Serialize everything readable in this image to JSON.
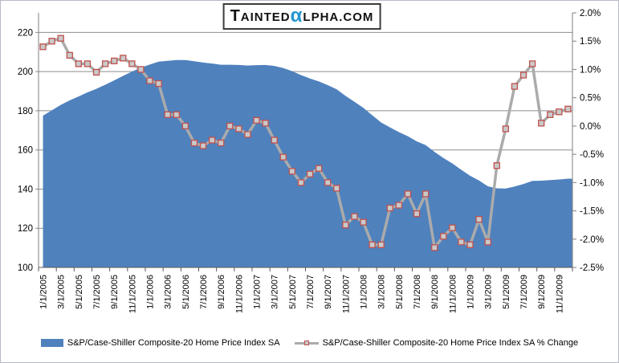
{
  "brand": {
    "t": "T",
    "ainted": "AINTED",
    "alpha": "α",
    "lpha_com": "LPHA.COM",
    "alpha_color": "#2496D2"
  },
  "legend": [
    {
      "label": "S&P/Case-Shiller Composite-20 Home Price Index SA",
      "type": "area",
      "color": "#4F81BD"
    },
    {
      "label": "S&P/Case-Shiller Composite-20 Home Price Index SA % Change",
      "type": "line-marker",
      "line_color": "#ABABAB",
      "marker_fill": "#C9C9C9",
      "marker_border": "#C0504D"
    }
  ],
  "chart_data": {
    "type": "area+line combo (dual axis)",
    "x": [
      "1/1/2005",
      "2/1/2005",
      "3/1/2005",
      "4/1/2005",
      "5/1/2005",
      "6/1/2005",
      "7/1/2005",
      "8/1/2005",
      "9/1/2005",
      "10/1/2005",
      "11/1/2005",
      "12/1/2005",
      "1/1/2006",
      "2/1/2006",
      "3/1/2006",
      "4/1/2006",
      "5/1/2006",
      "6/1/2006",
      "7/1/2006",
      "8/1/2006",
      "9/1/2006",
      "10/1/2006",
      "11/1/2006",
      "12/1/2006",
      "1/1/2007",
      "2/1/2007",
      "3/1/2007",
      "4/1/2007",
      "5/1/2007",
      "6/1/2007",
      "7/1/2007",
      "8/1/2007",
      "9/1/2007",
      "10/1/2007",
      "11/1/2007",
      "12/1/2007",
      "1/1/2008",
      "2/1/2008",
      "3/1/2008",
      "4/1/2008",
      "5/1/2008",
      "6/1/2008",
      "7/1/2008",
      "8/1/2008",
      "9/1/2008",
      "10/1/2008",
      "11/1/2008",
      "12/1/2008",
      "1/1/2009",
      "2/1/2009",
      "3/1/2009",
      "4/1/2009",
      "5/1/2009",
      "6/1/2009",
      "7/1/2009",
      "8/1/2009",
      "9/1/2009",
      "10/1/2009",
      "11/1/2009",
      "12/1/2009"
    ],
    "x_label_every": 2,
    "series": [
      {
        "name": "S&P/Case-Shiller Composite-20 Home Price Index SA",
        "type": "area",
        "axis": "left",
        "color": "#4F81BD",
        "values": [
          177.5,
          180.2,
          183.0,
          185.3,
          187.3,
          189.4,
          191.2,
          193.3,
          195.5,
          197.8,
          200.0,
          202.0,
          203.6,
          205.1,
          205.5,
          205.9,
          205.9,
          205.3,
          204.6,
          204.1,
          203.5,
          203.5,
          203.4,
          203.1,
          203.3,
          203.4,
          202.9,
          201.8,
          200.2,
          198.2,
          196.5,
          195.0,
          193.1,
          191.0,
          187.6,
          184.6,
          181.5,
          177.7,
          174.0,
          171.5,
          169.1,
          167.0,
          164.4,
          162.5,
          159.0,
          155.9,
          153.1,
          149.9,
          146.8,
          144.4,
          141.4,
          140.4,
          140.3,
          141.3,
          142.6,
          144.2,
          144.3,
          144.6,
          144.9,
          145.3
        ]
      },
      {
        "name": "S&P/Case-Shiller Composite-20 Home Price Index SA % Change",
        "type": "line",
        "axis": "right",
        "line_color": "#ABABAB",
        "marker_fill": "#C9C9C9",
        "marker_border": "#C0504D",
        "values": [
          1.4,
          1.5,
          1.55,
          1.25,
          1.1,
          1.1,
          0.95,
          1.1,
          1.15,
          1.2,
          1.1,
          1.0,
          0.8,
          0.75,
          0.2,
          0.2,
          0.0,
          -0.3,
          -0.35,
          -0.25,
          -0.3,
          0.0,
          -0.05,
          -0.15,
          0.1,
          0.05,
          -0.25,
          -0.55,
          -0.8,
          -1.0,
          -0.85,
          -0.75,
          -1.0,
          -1.1,
          -1.75,
          -1.6,
          -1.7,
          -2.1,
          -2.1,
          -1.45,
          -1.4,
          -1.2,
          -1.55,
          -1.2,
          -2.15,
          -1.95,
          -1.8,
          -2.05,
          -2.1,
          -1.65,
          -2.05,
          -0.7,
          -0.05,
          0.7,
          0.9,
          1.1,
          0.05,
          0.2,
          0.25,
          0.3
        ]
      }
    ],
    "left_axis": {
      "min": 100,
      "max": 230,
      "tick_values": [
        100,
        120,
        140,
        160,
        180,
        200,
        220
      ],
      "tick_labels": [
        "100",
        "120",
        "140",
        "160",
        "180",
        "200",
        "220"
      ]
    },
    "right_axis": {
      "min": -2.5,
      "max": 2.0,
      "tick_values": [
        2.0,
        1.5,
        1.0,
        0.5,
        0.0,
        -0.5,
        -1.0,
        -1.5,
        -2.0,
        -2.5
      ],
      "tick_labels": [
        "2.0%",
        "1.5%",
        "1.0%",
        "0.5%",
        "0.0%",
        "-0.5%",
        "-1.0%",
        "-1.5%",
        "-2.0%",
        "-2.5%"
      ]
    },
    "grid": "horizontal major gridlines at left-axis ticks",
    "legend_position": "bottom",
    "colors": {
      "gridline": "#8E8E8E",
      "axis": "#7F7F7F",
      "tick_text": "#000000"
    }
  }
}
